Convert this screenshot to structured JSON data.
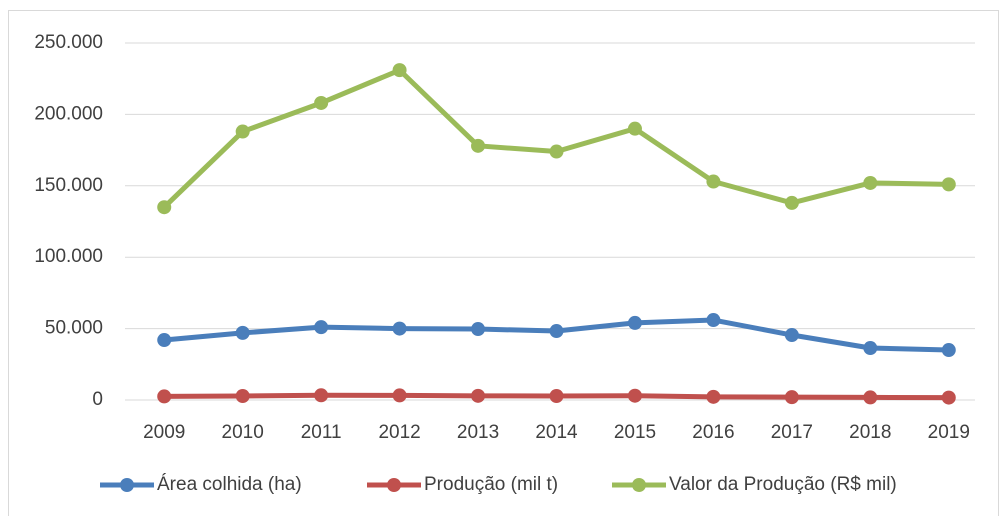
{
  "chart_data": {
    "type": "line",
    "categories": [
      "2009",
      "2010",
      "2011",
      "2012",
      "2013",
      "2014",
      "2015",
      "2016",
      "2017",
      "2018",
      "2019"
    ],
    "series": [
      {
        "name": "Área colhida (ha)",
        "color": "#4a7ebb",
        "values": [
          42000,
          47000,
          51000,
          50000,
          49700,
          48300,
          54000,
          56000,
          45500,
          36400,
          35000
        ]
      },
      {
        "name": "Produção (mil t)",
        "color": "#c0504d",
        "values": [
          2500,
          2800,
          3300,
          3200,
          2900,
          2800,
          3000,
          2200,
          2000,
          1800,
          1700
        ]
      },
      {
        "name": "Valor da Produção (R$ mil)",
        "color": "#9bbb59",
        "values": [
          135000,
          188000,
          208000,
          231000,
          178000,
          174000,
          190000,
          153000,
          138000,
          152000,
          151000
        ]
      }
    ],
    "ylim": [
      0,
      250000
    ],
    "yticks": [
      0,
      {
        "value": 50000,
        "label": "50.000"
      },
      {
        "value": 100000,
        "label": "100.000"
      },
      {
        "value": 150000,
        "label": "150.000"
      },
      {
        "value": 200000,
        "label": "200.000"
      },
      {
        "value": 250000,
        "label": "250.000"
      }
    ],
    "grid": true,
    "legend": "bottom"
  }
}
